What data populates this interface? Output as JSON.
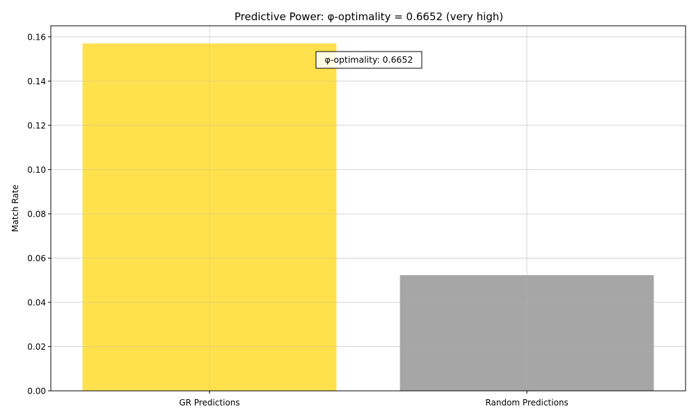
{
  "chart_data": {
    "type": "bar",
    "title": "Predictive Power: φ-optimality = 0.6652 (very high)",
    "xlabel": "",
    "ylabel": "Match Rate",
    "categories": [
      "GR Predictions",
      "Random Predictions"
    ],
    "values": [
      0.157,
      0.0523
    ],
    "bar_colors": [
      "#ffe14d",
      "#a6a6a6"
    ],
    "ylim": [
      0,
      0.165
    ],
    "yticks": [
      0.0,
      0.02,
      0.04,
      0.06,
      0.08,
      0.1,
      0.12,
      0.14,
      0.16
    ],
    "ytick_labels": [
      "0.00",
      "0.02",
      "0.04",
      "0.06",
      "0.08",
      "0.10",
      "0.12",
      "0.14",
      "0.16"
    ],
    "grid": true,
    "annotation": "φ-optimality: 0.6652"
  }
}
